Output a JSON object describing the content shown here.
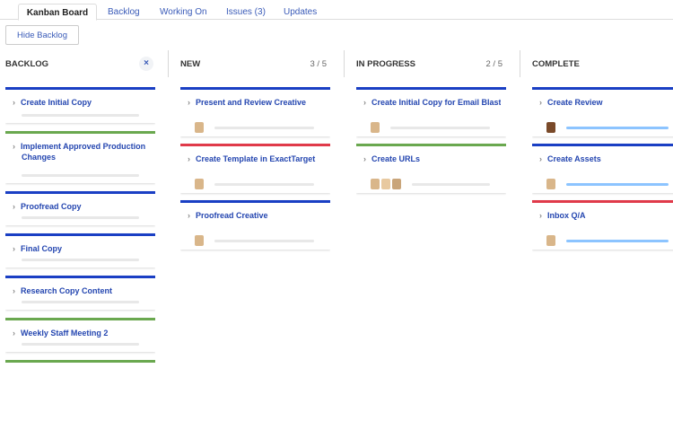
{
  "tabs": [
    {
      "label": "Kanban Board",
      "active": true
    },
    {
      "label": "Backlog"
    },
    {
      "label": "Working On"
    },
    {
      "label": "Issues (3)"
    },
    {
      "label": "Updates"
    }
  ],
  "hide_backlog": "Hide Backlog",
  "colors": {
    "blue": "#1a3fc4",
    "green": "#6aa84f",
    "red": "#e03a4a",
    "progress": "#8cc4ff"
  },
  "columns": [
    {
      "title": "BACKLOG",
      "close": "×",
      "cards": [
        {
          "title": "Create Initial Copy",
          "color": "blue"
        },
        {
          "title": "Implement Approved Production Changes",
          "color": "green"
        },
        {
          "title": "Proofread Copy",
          "color": "blue"
        },
        {
          "title": "Final Copy",
          "color": "blue"
        },
        {
          "title": "Research Copy Content",
          "color": "blue"
        },
        {
          "title": "Weekly Staff Meeting 2",
          "color": "green"
        },
        {
          "title": "",
          "color": "green"
        }
      ]
    },
    {
      "title": "NEW",
      "count": "3 / 5",
      "cards": [
        {
          "title": "Present and Review Creative",
          "color": "blue",
          "avatars": 1
        },
        {
          "title": "Create Template in ExactTarget",
          "color": "red",
          "avatars": 1
        },
        {
          "title": "Proofread Creative",
          "color": "blue",
          "avatars": 1
        }
      ]
    },
    {
      "title": "IN PROGRESS",
      "count": "2 / 5",
      "cards": [
        {
          "title": "Create Initial Copy for Email Blast",
          "color": "blue",
          "avatars": 1
        },
        {
          "title": "Create URLs",
          "color": "green",
          "avatars": 3
        }
      ]
    },
    {
      "title": "COMPLETE",
      "cards": [
        {
          "title": "Create Review",
          "color": "blue",
          "avatars": 1,
          "progress": 100
        },
        {
          "title": "Create Assets",
          "color": "blue",
          "avatars": 1,
          "progress": 100
        },
        {
          "title": "Inbox Q/A",
          "color": "red",
          "avatars": 1,
          "progress": 100
        }
      ]
    }
  ]
}
